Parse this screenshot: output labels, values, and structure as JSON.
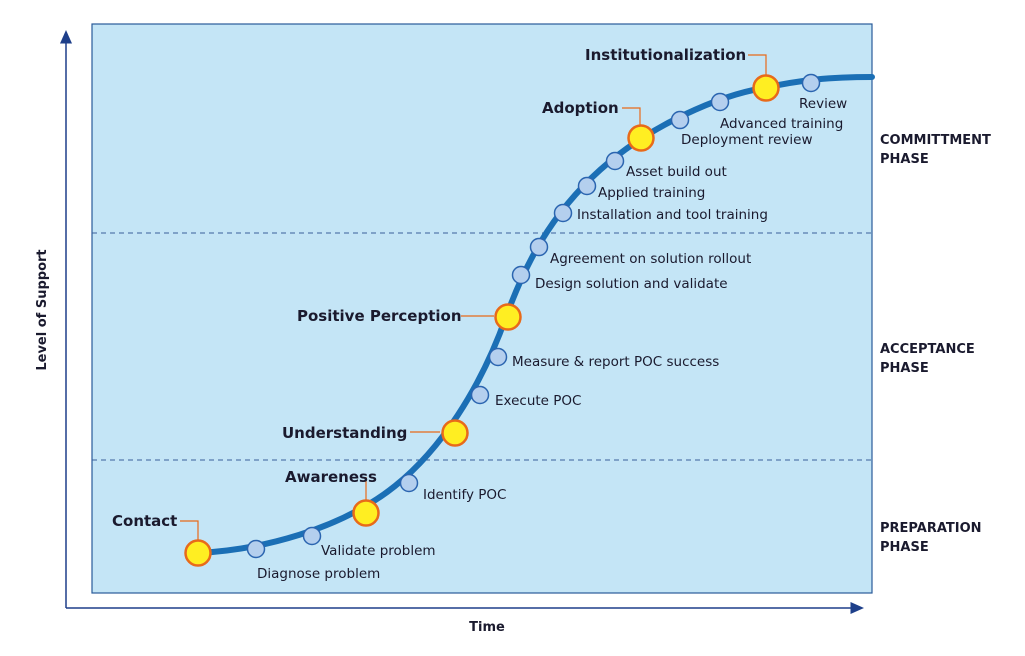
{
  "axes": {
    "y_label": "Level of Support",
    "x_label": "Time"
  },
  "phases": [
    {
      "line1": "COMMITTMENT",
      "line2": "PHASE"
    },
    {
      "line1": "ACCEPTANCE",
      "line2": "PHASE"
    },
    {
      "line1": "PREPARATION",
      "line2": "PHASE"
    }
  ],
  "milestones": [
    {
      "label": "Contact"
    },
    {
      "label": "Awareness"
    },
    {
      "label": "Understanding"
    },
    {
      "label": "Positive Perception"
    },
    {
      "label": "Adoption"
    },
    {
      "label": "Institutionalization"
    }
  ],
  "steps": [
    {
      "label": "Diagnose problem"
    },
    {
      "label": "Validate problem"
    },
    {
      "label": "Identify POC"
    },
    {
      "label": "Execute POC"
    },
    {
      "label": "Measure & report POC success"
    },
    {
      "label": "Design solution and validate"
    },
    {
      "label": "Agreement on solution rollout"
    },
    {
      "label": "Installation and tool training"
    },
    {
      "label": "Applied training"
    },
    {
      "label": "Asset build out"
    },
    {
      "label": "Deployment review"
    },
    {
      "label": "Advanced training"
    },
    {
      "label": "Review"
    }
  ],
  "colors": {
    "panel": "#c4e5f6",
    "panel_border": "#2a5a9a",
    "curve": "#1b6fb5",
    "milestone_fill": "#ffee22",
    "milestone_stroke": "#e86a1a",
    "step_fill": "#b4cfee",
    "step_stroke": "#2b65b0",
    "axis": "#1e3f8a"
  }
}
